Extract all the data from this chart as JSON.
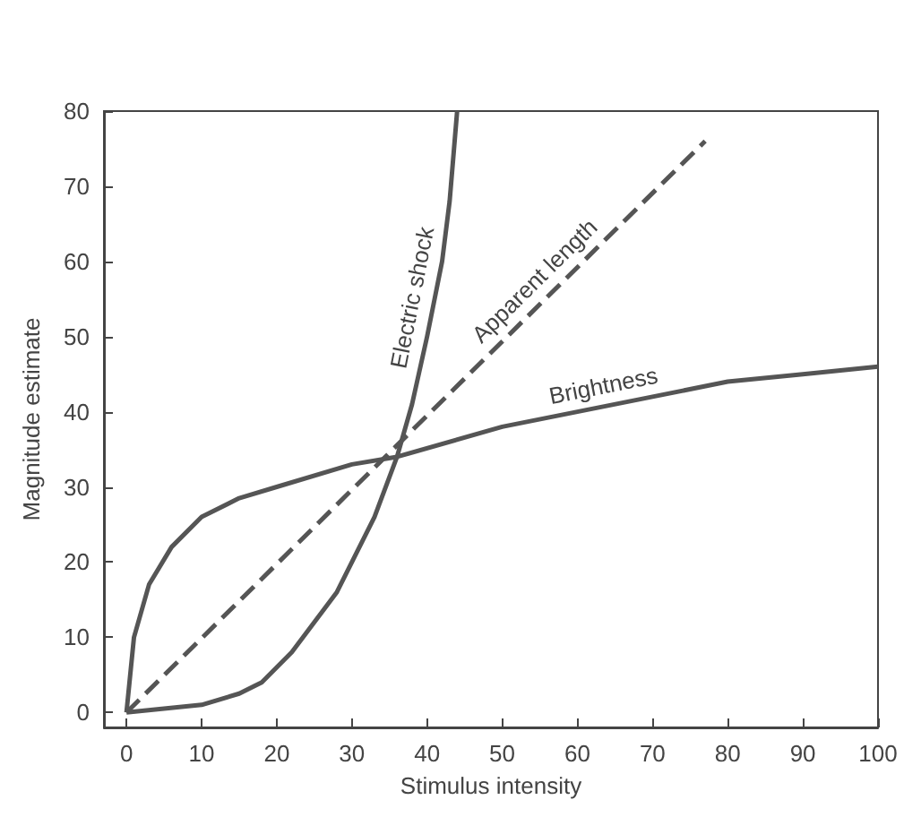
{
  "chart_data": {
    "type": "line",
    "xlabel": "Stimulus intensity",
    "ylabel": "Magnitude estimate",
    "xlim": [
      -3,
      100
    ],
    "xticks": [
      0,
      10,
      20,
      30,
      40,
      50,
      60,
      70,
      80,
      90,
      100
    ],
    "ylim": [
      -2,
      80
    ],
    "yticks": [
      0,
      10,
      20,
      30,
      40,
      50,
      60,
      70,
      80
    ],
    "grid": false,
    "legend": false,
    "marker": "none",
    "series": [
      {
        "name": "Electric shock",
        "color": "#555555",
        "line_style": "solid",
        "x": [
          0,
          5,
          10,
          15,
          18,
          22,
          25,
          28,
          30,
          33,
          36,
          38,
          40,
          42,
          43,
          44
        ],
        "values": [
          0,
          0.5,
          1,
          2.5,
          4,
          8,
          12,
          16,
          20,
          26,
          34,
          41,
          50,
          60,
          68,
          80
        ]
      },
      {
        "name": "Apparent length",
        "color": "#555555",
        "line_style": "dashed",
        "x": [
          0,
          77
        ],
        "values": [
          0,
          76
        ]
      },
      {
        "name": "Brightness",
        "color": "#555555",
        "line_style": "solid",
        "x": [
          0,
          1,
          3,
          6,
          10,
          15,
          20,
          30,
          36,
          50,
          60,
          70,
          80,
          90,
          100
        ],
        "values": [
          0,
          10,
          17,
          22,
          26,
          28.5,
          30,
          33,
          34,
          38,
          40,
          42,
          44,
          45,
          46
        ]
      }
    ]
  }
}
